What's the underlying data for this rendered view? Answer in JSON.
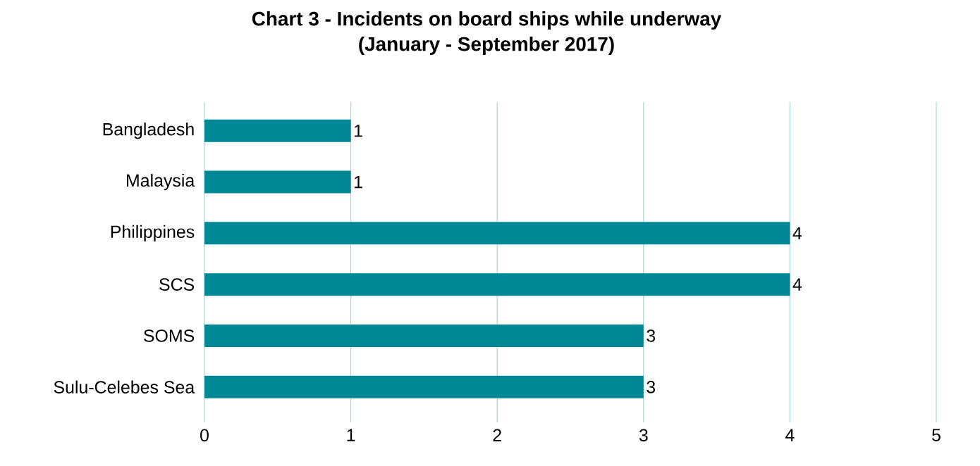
{
  "chart_data": {
    "type": "bar",
    "orientation": "horizontal",
    "title": "Chart 3 - Incidents on board ships while underway\n(January - September 2017)",
    "categories": [
      "Bangladesh",
      "Malaysia",
      "Philippines",
      "SCS",
      "SOMS",
      "Sulu-Celebes Sea"
    ],
    "values": [
      1,
      1,
      4,
      4,
      3,
      3
    ],
    "color": "#008896",
    "xlim": [
      0,
      5
    ],
    "xticks": [
      0,
      1,
      2,
      3,
      4,
      5
    ],
    "grid": "x",
    "data_labels": true
  }
}
